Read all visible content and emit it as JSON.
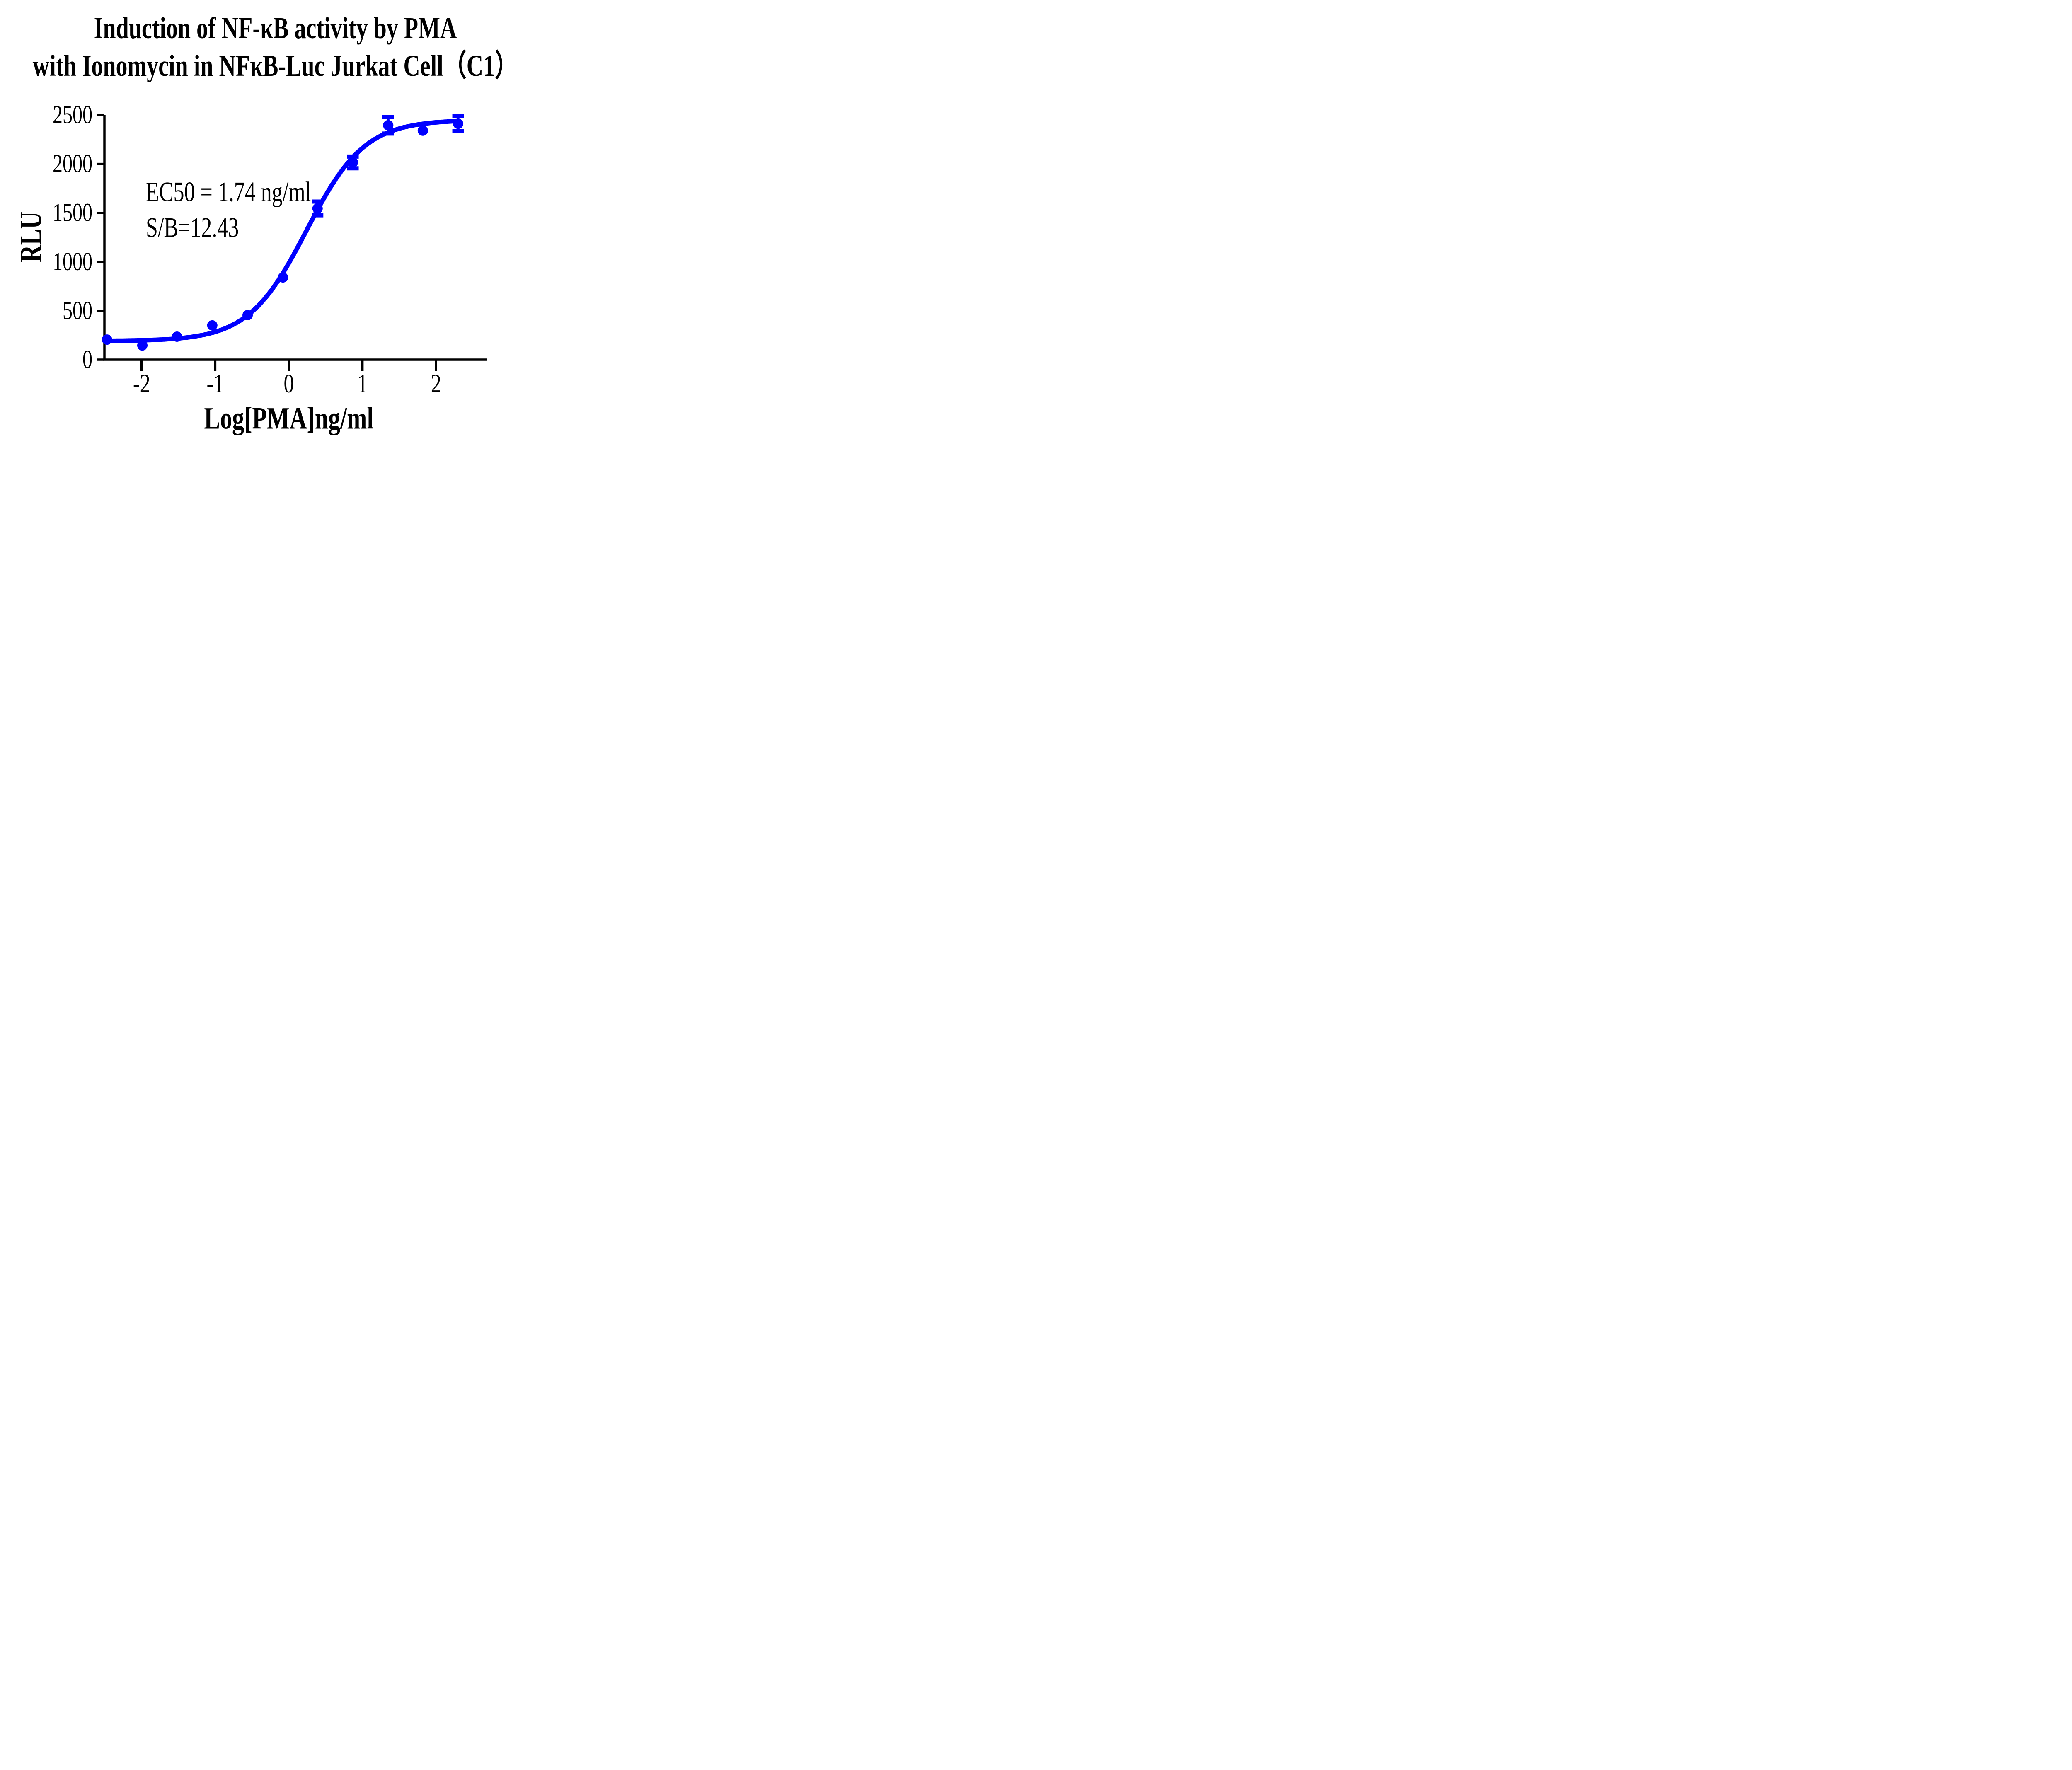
{
  "title": {
    "line1": "Induction of NF-κB activity by PMA",
    "line2": "with Ionomycin in NFκB-Luc Jurkat Cell（C1）"
  },
  "annotation": {
    "line1": "EC50 = 1.74 ng/ml",
    "line2": "S/B=12.43"
  },
  "axes": {
    "x_label": "Log[PMA]ng/ml",
    "y_label": "RLU",
    "x_ticks": [
      -2,
      -1,
      0,
      1,
      2
    ],
    "y_ticks": [
      0,
      500,
      1000,
      1500,
      2000,
      2500
    ]
  },
  "colors": {
    "series": "#0000FF",
    "axis": "#000000",
    "text": "#000000",
    "background": "#FFFFFF"
  },
  "chart_data": {
    "type": "scatter",
    "title": "Induction of NF-κB activity by PMA with Ionomycin in NFκB-Luc Jurkat Cell（C1）",
    "xlabel": "Log[PMA]ng/ml",
    "ylabel": "RLU",
    "xlim": [
      -2.51,
      2.7
    ],
    "ylim": [
      0,
      2500
    ],
    "x_ticks": [
      -2,
      -1,
      0,
      1,
      2
    ],
    "y_ticks": [
      0,
      500,
      1000,
      1500,
      2000,
      2500
    ],
    "grid": false,
    "legend": "none",
    "series": [
      {
        "name": "PMA with Ionomycin",
        "marker": "circle",
        "color": "#0000FF",
        "x": [
          -2.47,
          -1.99,
          -1.52,
          -1.04,
          -0.56,
          -0.08,
          0.39,
          0.87,
          1.35,
          1.82,
          2.3
        ],
        "y": [
          205,
          145,
          235,
          350,
          455,
          840,
          1545,
          2015,
          2395,
          2340,
          2410
        ],
        "y_err": [
          0,
          0,
          0,
          0,
          0,
          0,
          70,
          60,
          85,
          0,
          75
        ]
      }
    ],
    "fit_curve": {
      "model": "4PL sigmoid",
      "bottom": 190,
      "top": 2450,
      "log_ec50": 0.2405,
      "ec50_label": "1.74 ng/ml",
      "hill_slope": 1.1,
      "x_start": -2.505,
      "x_end": 2.315
    },
    "annotations": [
      "EC50 = 1.74 ng/ml",
      "S/B=12.43"
    ]
  }
}
